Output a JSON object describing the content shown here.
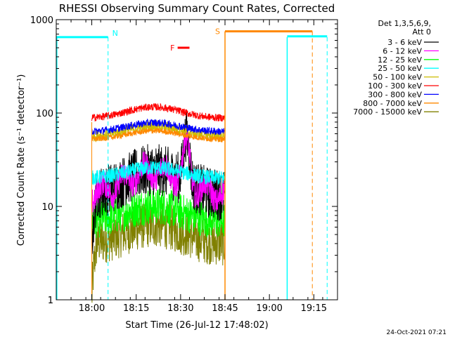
{
  "chart_data": {
    "type": "line",
    "title": "RHESSI Observing Summary Count Rates, Corrected",
    "xlabel": "Start Time (26-Jul-12 17:48:02)",
    "ylabel": "Corrected Count Rate (s⁻¹ detector⁻¹)",
    "yscale": "log",
    "ylim": [
      1,
      1000
    ],
    "xlim_minutes_after_1748": [
      0,
      95
    ],
    "x_tick_labels": [
      "18:00",
      "18:15",
      "18:30",
      "18:45",
      "19:00",
      "19:15"
    ],
    "x_tick_minutes": [
      12,
      27,
      42,
      57,
      72,
      87
    ],
    "y_tick_labels": [
      "1",
      "10",
      "100",
      "1000"
    ],
    "y_tick_values": [
      1,
      10,
      100,
      1000
    ],
    "legend_header": [
      "Det 1,3,5,6,9,",
      "Att 0"
    ],
    "legend_position": "right",
    "footer_date": "24-Oct-2021 07:21",
    "markers": {
      "night_label": "N",
      "saa_label": "S",
      "flare_label": "F"
    },
    "series": [
      {
        "name": "3 - 6 keV",
        "color": "#000000",
        "level": 13,
        "amp": 0.9,
        "noise": 0.28
      },
      {
        "name": "6 - 12 keV",
        "color": "#ff00ff",
        "level": 13.5,
        "amp": 0.8,
        "noise": 0.14
      },
      {
        "name": "12 - 25 keV",
        "color": "#00ff00",
        "level": 7,
        "amp": 0.45,
        "noise": 0.2
      },
      {
        "name": "25 - 50 keV",
        "color": "#00ffff",
        "level": 20,
        "amp": 0.3,
        "noise": 0.08
      },
      {
        "name": "50 - 100 keV",
        "color": "#ccbb00",
        "level": 56,
        "amp": 0.3,
        "noise": 0.06
      },
      {
        "name": "100 - 300 keV",
        "color": "#ff0000",
        "level": 88,
        "amp": 0.32,
        "noise": 0.04
      },
      {
        "name": "300 - 800 keV",
        "color": "#0000ff",
        "level": 63,
        "amp": 0.25,
        "noise": 0.04
      },
      {
        "name": "800 - 7000 keV",
        "color": "#ff8800",
        "level": 52,
        "amp": 0.24,
        "noise": 0.03
      },
      {
        "name": "7000 - 15000 keV",
        "color": "#808000",
        "level": 4,
        "amp": 0.6,
        "noise": 0.25
      }
    ],
    "cyan_level_before": 650,
    "orange_level_after": 750,
    "data_start_minute": 12,
    "data_end_minute": 57
  }
}
